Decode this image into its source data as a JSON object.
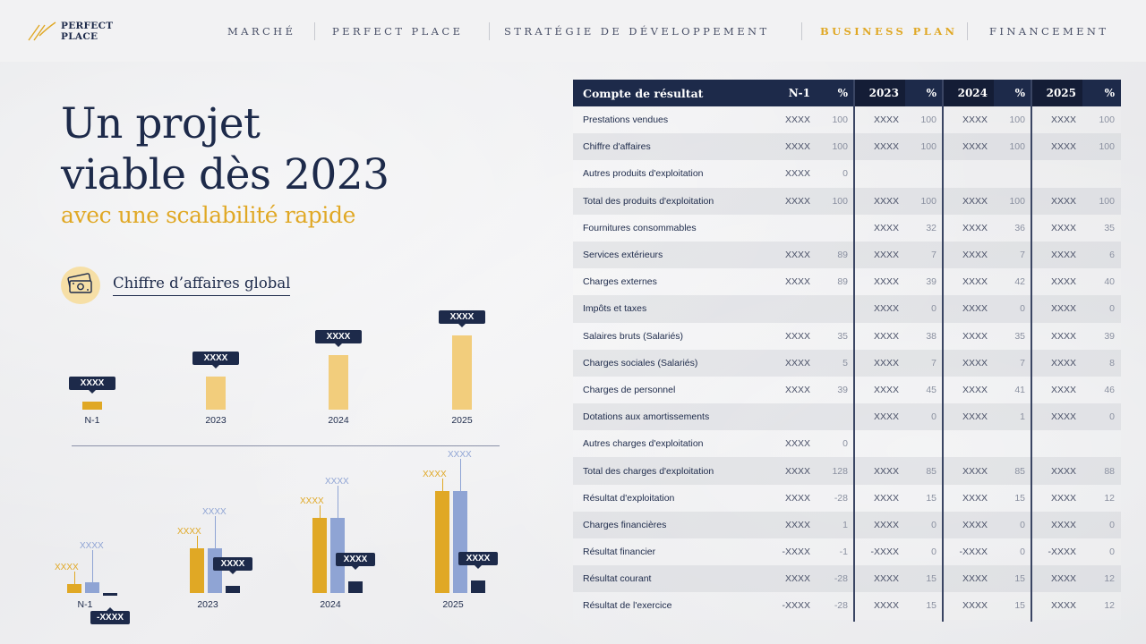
{
  "logo": {
    "line1": "PERFECT",
    "line2": "PLACE"
  },
  "nav": [
    {
      "label": "MARCHÉ",
      "active": false
    },
    {
      "label": "PERFECT PLACE",
      "active": false
    },
    {
      "label": "STRATÉGIE DE DÉVELOPPEMENT",
      "active": false
    },
    {
      "label": "BUSINESS PLAN",
      "active": true
    },
    {
      "label": "FINANCEMENT",
      "active": false
    }
  ],
  "title": {
    "line1": "Un projet",
    "line2": "viable dès 2023",
    "subtitle": "avec une scalabilité rapide"
  },
  "section": {
    "label": "Chiffre d’affaires global",
    "icon": "money-icon"
  },
  "colors": {
    "navy": "#1d2a4a",
    "gold": "#e0a825",
    "light_gold": "#f2cd7c",
    "blue": "#8fa4d4"
  },
  "chart_data": [
    {
      "type": "bar",
      "title": "Chiffre d’affaires global",
      "categories": [
        "N-1",
        "2023",
        "2024",
        "2025"
      ],
      "values": [
        9,
        37,
        61,
        83
      ],
      "labels": [
        "XXXX",
        "XXXX",
        "XXXX",
        "XXXX"
      ]
    },
    {
      "type": "bar",
      "categories": [
        "N-1",
        "2023",
        "2024",
        "2025"
      ],
      "series": [
        {
          "name": "gold",
          "values": [
            10,
            50,
            84,
            114
          ],
          "labels": [
            "XXXX",
            "XXXX",
            "XXXX",
            "XXXX"
          ]
        },
        {
          "name": "blue",
          "values": [
            12,
            50,
            84,
            114
          ],
          "labels": [
            "XXXX",
            "XXXX",
            "XXXX",
            "XXXX"
          ]
        },
        {
          "name": "navy",
          "values": [
            -3,
            8,
            13,
            14
          ],
          "labels": [
            "-XXXX",
            "XXXX",
            "XXXX",
            "XXXX"
          ]
        }
      ]
    }
  ],
  "table": {
    "headers": [
      "Compte de résultat",
      "N-1",
      "%",
      "2023",
      "%",
      "2024",
      "%",
      "2025",
      "%"
    ],
    "rows": [
      [
        "Prestations vendues",
        "XXXX",
        "100",
        "XXXX",
        "100",
        "XXXX",
        "100",
        "XXXX",
        "100"
      ],
      [
        "Chiffre d'affaires",
        "XXXX",
        "100",
        "XXXX",
        "100",
        "XXXX",
        "100",
        "XXXX",
        "100"
      ],
      [
        "Autres produits d'exploitation",
        "XXXX",
        "0",
        "",
        "",
        "",
        "",
        "",
        ""
      ],
      [
        "Total des produits d'exploitation",
        "XXXX",
        "100",
        "XXXX",
        "100",
        "XXXX",
        "100",
        "XXXX",
        "100"
      ],
      [
        "Fournitures consommables",
        "",
        "",
        "XXXX",
        "32",
        "XXXX",
        "36",
        "XXXX",
        "35"
      ],
      [
        "Services extérieurs",
        "XXXX",
        "89",
        "XXXX",
        "7",
        "XXXX",
        "7",
        "XXXX",
        "6"
      ],
      [
        "Charges externes",
        "XXXX",
        "89",
        "XXXX",
        "39",
        "XXXX",
        "42",
        "XXXX",
        "40"
      ],
      [
        "Impôts et taxes",
        "",
        "",
        "XXXX",
        "0",
        "XXXX",
        "0",
        "XXXX",
        "0"
      ],
      [
        "Salaires bruts (Salariés)",
        "XXXX",
        "35",
        "XXXX",
        "38",
        "XXXX",
        "35",
        "XXXX",
        "39"
      ],
      [
        "Charges sociales (Salariés)",
        "XXXX",
        "5",
        "XXXX",
        "7",
        "XXXX",
        "7",
        "XXXX",
        "8"
      ],
      [
        "Charges de personnel",
        "XXXX",
        "39",
        "XXXX",
        "45",
        "XXXX",
        "41",
        "XXXX",
        "46"
      ],
      [
        "Dotations aux amortissements",
        "",
        "",
        "XXXX",
        "0",
        "XXXX",
        "1",
        "XXXX",
        "0"
      ],
      [
        "Autres charges d'exploitation",
        "XXXX",
        "0",
        "",
        "",
        "",
        "",
        "",
        ""
      ],
      [
        "Total des charges d'exploitation",
        "XXXX",
        "128",
        "XXXX",
        "85",
        "XXXX",
        "85",
        "XXXX",
        "88"
      ],
      [
        "Résultat d'exploitation",
        "XXXX",
        "-28",
        "XXXX",
        "15",
        "XXXX",
        "15",
        "XXXX",
        "12"
      ],
      [
        "Charges financières",
        "XXXX",
        "1",
        "XXXX",
        "0",
        "XXXX",
        "0",
        "XXXX",
        "0"
      ],
      [
        "Résultat financier",
        "-XXXX",
        "-1",
        "-XXXX",
        "0",
        "-XXXX",
        "0",
        "-XXXX",
        "0"
      ],
      [
        "Résultat courant",
        "XXXX",
        "-28",
        "XXXX",
        "15",
        "XXXX",
        "15",
        "XXXX",
        "12"
      ],
      [
        "Résultat de l'exercice",
        "-XXXX",
        "-28",
        "XXXX",
        "15",
        "XXXX",
        "15",
        "XXXX",
        "12"
      ]
    ]
  }
}
